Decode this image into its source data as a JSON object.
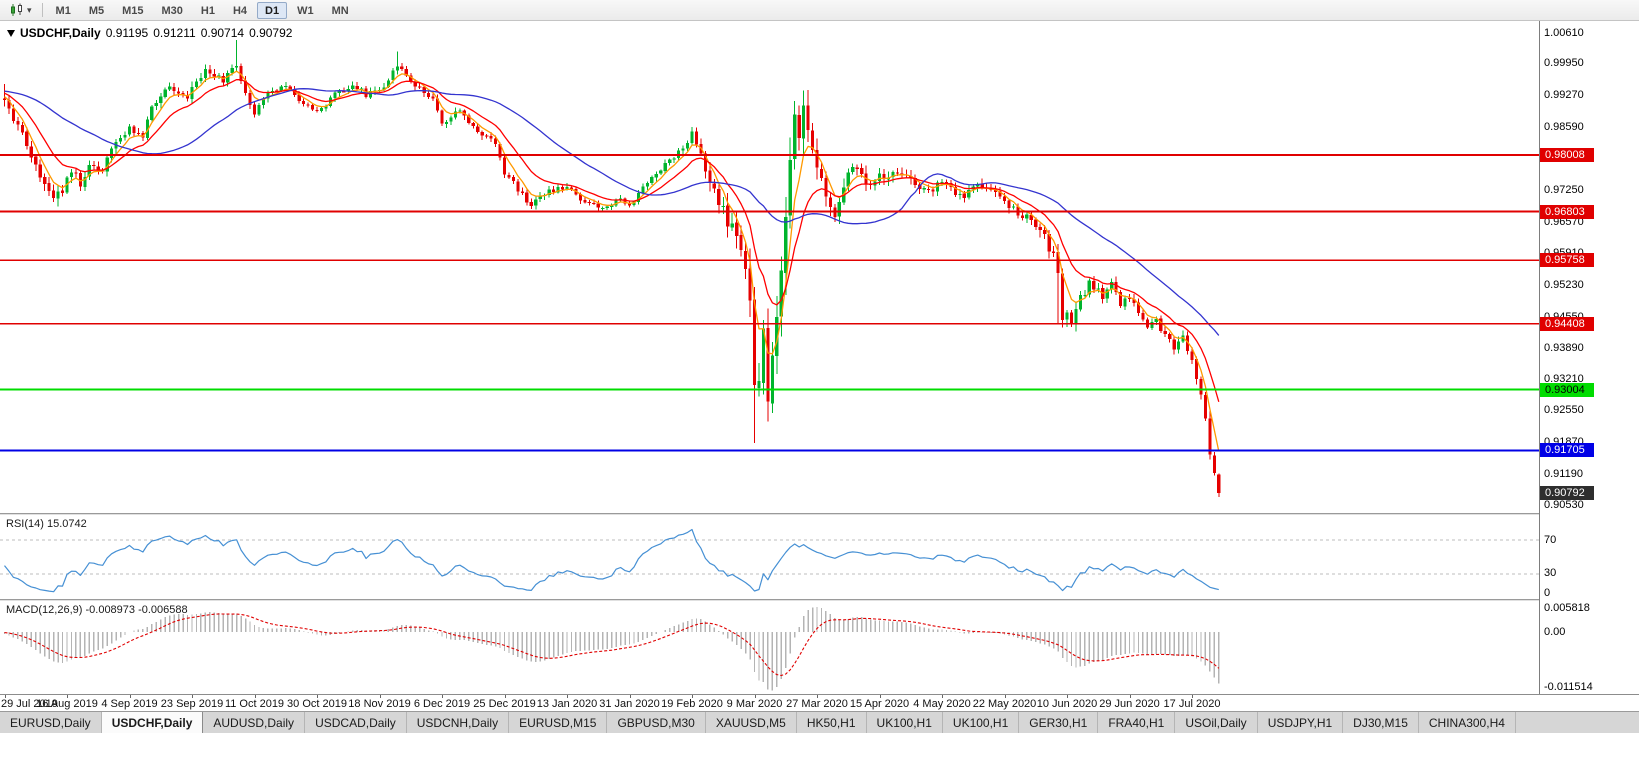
{
  "colors": {
    "bull": "#00b42d",
    "bear": "#e60000",
    "ma_fast": "#ff9900",
    "ma_mid": "#ff0000",
    "ma_slow": "#3434cf",
    "level_red": "#e00000",
    "level_green": "#00dc00",
    "level_blue": "#0000e6",
    "current_tag": "#2e2e2e",
    "rsi_line": "#4690d4",
    "rsi_level": "#bdbdbd",
    "macd_hist": "#b4b4b4",
    "macd_signal": "#e00000"
  },
  "toolbar": {
    "timeframes": [
      "M1",
      "M5",
      "M15",
      "M30",
      "H1",
      "H4",
      "D1",
      "W1",
      "MN"
    ],
    "selected": "D1",
    "chart_type_icon": "candlestick-chart-icon"
  },
  "main_chart": {
    "symbol_label": "USDCHF,Daily",
    "open": "0.91195",
    "high": "0.91211",
    "low": "0.90714",
    "close": "0.90792",
    "price_axis": {
      "scale_top": 1.0061,
      "scale_bottom": 0.9053,
      "labels": [
        "1.00610",
        "0.99950",
        "0.99270",
        "0.98590",
        "0.97910",
        "0.97250",
        "0.96570",
        "0.95910",
        "0.95230",
        "0.94550",
        "0.93890",
        "0.93210",
        "0.92550",
        "0.91870",
        "0.91190",
        "0.90530"
      ]
    },
    "level_lines": [
      {
        "price": 0.98008,
        "label": "0.98008",
        "type": "resistance",
        "color_key": "level_red",
        "text_color": "#ffffff"
      },
      {
        "price": 0.96803,
        "label": "0.96803",
        "type": "resistance",
        "color_key": "level_red",
        "text_color": "#ffffff"
      },
      {
        "price": 0.95758,
        "label": "0.95758",
        "type": "resistance",
        "color_key": "level_red",
        "text_color": "#ffffff"
      },
      {
        "price": 0.94408,
        "label": "0.94408",
        "type": "resistance",
        "color_key": "level_red",
        "text_color": "#ffffff"
      },
      {
        "price": 0.93004,
        "label": "0.93004",
        "type": "support",
        "color_key": "level_green",
        "text_color": "#000000"
      },
      {
        "price": 0.91705,
        "label": "0.91705",
        "type": "support",
        "color_key": "level_blue",
        "text_color": "#ffffff"
      }
    ],
    "current_price": {
      "price": 0.90792,
      "label": "0.90792",
      "text_color": "#ffffff"
    }
  },
  "rsi_panel": {
    "title": "RSI(14)",
    "value": "15.0742",
    "levels": [
      70,
      30
    ],
    "axis_labels": [
      {
        "value": 70,
        "label": "70"
      },
      {
        "value": 30,
        "label": "30"
      },
      {
        "value": 0,
        "label": "0"
      }
    ]
  },
  "macd_panel": {
    "title": "MACD(12,26,9)",
    "values": "-0.008973 -0.006588",
    "scale_top": 0.005818,
    "scale_bottom": -0.011514,
    "axis_labels": [
      {
        "value": 0.005818,
        "label": "0.005818"
      },
      {
        "value": 0,
        "label": "0.00"
      },
      {
        "value": -0.011514,
        "label": "-0.011514"
      }
    ]
  },
  "date_axis": {
    "labels": [
      "29 Jul 2019",
      "16 Aug 2019",
      "4 Sep 2019",
      "23 Sep 2019",
      "11 Oct 2019",
      "30 Oct 2019",
      "18 Nov 2019",
      "6 Dec 2019",
      "25 Dec 2019",
      "13 Jan 2020",
      "31 Jan 2020",
      "19 Feb 2020",
      "9 Mar 2020",
      "27 Mar 2020",
      "15 Apr 2020",
      "4 May 2020",
      "22 May 2020",
      "10 Jun 2020",
      "29 Jun 2020",
      "17 Jul 2020"
    ]
  },
  "tabs": {
    "items": [
      "EURUSD,Daily",
      "USDCHF,Daily",
      "AUDUSD,Daily",
      "USDCAD,Daily",
      "USDCNH,Daily",
      "EURUSD,M15",
      "GBPUSD,M30",
      "XAUUSD,M5",
      "HK50,H1",
      "UK100,H1",
      "UK100,H1",
      "GER30,H1",
      "FRA40,H1",
      "USOil,Daily",
      "USDJPY,H1",
      "DJ30,M15",
      "CHINA300,H4"
    ],
    "active_index": 1
  },
  "chart_data": {
    "type": "candlestick",
    "symbol": "USDCHF",
    "timeframe": "Daily",
    "candle_count": 273,
    "price_range": [
      0.9053,
      1.0061
    ],
    "last_candle": {
      "open": 0.91195,
      "high": 0.91211,
      "low": 0.90714,
      "close": 0.90792
    },
    "close_keypoints": [
      [
        0,
        0.992
      ],
      [
        3,
        0.9862
      ],
      [
        6,
        0.98
      ],
      [
        9,
        0.9742
      ],
      [
        11,
        0.97
      ],
      [
        13,
        0.9728
      ],
      [
        15,
        0.9772
      ],
      [
        17,
        0.9741
      ],
      [
        19,
        0.978
      ],
      [
        22,
        0.9762
      ],
      [
        24,
        0.9818
      ],
      [
        28,
        0.9858
      ],
      [
        31,
        0.984
      ],
      [
        33,
        0.9898
      ],
      [
        37,
        0.9948
      ],
      [
        41,
        0.9928
      ],
      [
        45,
        0.9985
      ],
      [
        49,
        0.9958
      ],
      [
        52,
        0.9998
      ],
      [
        54,
        0.993
      ],
      [
        56,
        0.9882
      ],
      [
        58,
        0.992
      ],
      [
        62,
        0.9952
      ],
      [
        66,
        0.9918
      ],
      [
        70,
        0.989
      ],
      [
        74,
        0.993
      ],
      [
        78,
        0.9952
      ],
      [
        81,
        0.993
      ],
      [
        84,
        0.9938
      ],
      [
        88,
        0.9988
      ],
      [
        92,
        0.995
      ],
      [
        96,
        0.9918
      ],
      [
        98,
        0.9872
      ],
      [
        102,
        0.9892
      ],
      [
        106,
        0.985
      ],
      [
        110,
        0.9828
      ],
      [
        112,
        0.9762
      ],
      [
        116,
        0.9718
      ],
      [
        118,
        0.9692
      ],
      [
        122,
        0.9722
      ],
      [
        126,
        0.9736
      ],
      [
        130,
        0.97
      ],
      [
        134,
        0.9682
      ],
      [
        138,
        0.9712
      ],
      [
        140,
        0.9692
      ],
      [
        144,
        0.9742
      ],
      [
        148,
        0.9782
      ],
      [
        152,
        0.9818
      ],
      [
        154,
        0.9846
      ],
      [
        156,
        0.98
      ],
      [
        158,
        0.9742
      ],
      [
        160,
        0.9702
      ],
      [
        162,
        0.9662
      ],
      [
        164,
        0.9622
      ],
      [
        166,
        0.956
      ],
      [
        167,
        0.948
      ],
      [
        168,
        0.9285
      ],
      [
        169,
        0.9352
      ],
      [
        170,
        0.942
      ],
      [
        171,
        0.931
      ],
      [
        172,
        0.9392
      ],
      [
        173,
        0.9482
      ],
      [
        174,
        0.9562
      ],
      [
        175,
        0.9682
      ],
      [
        176,
        0.9802
      ],
      [
        177,
        0.9896
      ],
      [
        178,
        0.9858
      ],
      [
        179,
        0.9915
      ],
      [
        180,
        0.984
      ],
      [
        182,
        0.9772
      ],
      [
        184,
        0.9702
      ],
      [
        186,
        0.9662
      ],
      [
        188,
        0.9722
      ],
      [
        190,
        0.9778
      ],
      [
        194,
        0.9742
      ],
      [
        196,
        0.9752
      ],
      [
        200,
        0.9772
      ],
      [
        204,
        0.9732
      ],
      [
        208,
        0.9722
      ],
      [
        210,
        0.9748
      ],
      [
        214,
        0.9712
      ],
      [
        218,
        0.9732
      ],
      [
        222,
        0.9722
      ],
      [
        224,
        0.97
      ],
      [
        228,
        0.9672
      ],
      [
        232,
        0.9652
      ],
      [
        234,
        0.9602
      ],
      [
        236,
        0.9562
      ],
      [
        237,
        0.9462
      ],
      [
        239,
        0.9442
      ],
      [
        241,
        0.9492
      ],
      [
        243,
        0.9532
      ],
      [
        246,
        0.9502
      ],
      [
        248,
        0.9532
      ],
      [
        250,
        0.9482
      ],
      [
        252,
        0.9496
      ],
      [
        254,
        0.9462
      ],
      [
        256,
        0.9432
      ],
      [
        258,
        0.9452
      ],
      [
        260,
        0.9412
      ],
      [
        262,
        0.9392
      ],
      [
        264,
        0.9408
      ],
      [
        266,
        0.9372
      ],
      [
        267,
        0.933
      ],
      [
        268,
        0.929
      ],
      [
        269,
        0.9232
      ],
      [
        270,
        0.917
      ],
      [
        271,
        0.9122
      ],
      [
        272,
        0.90792
      ]
    ],
    "volatility_keypoints": [
      [
        0,
        0.0022
      ],
      [
        12,
        0.0026
      ],
      [
        20,
        0.0018
      ],
      [
        40,
        0.0018
      ],
      [
        60,
        0.0015
      ],
      [
        80,
        0.0014
      ],
      [
        100,
        0.0015
      ],
      [
        120,
        0.0014
      ],
      [
        140,
        0.0013
      ],
      [
        152,
        0.0016
      ],
      [
        158,
        0.003
      ],
      [
        164,
        0.0045
      ],
      [
        167,
        0.007
      ],
      [
        168,
        0.009
      ],
      [
        172,
        0.008
      ],
      [
        176,
        0.0075
      ],
      [
        180,
        0.0055
      ],
      [
        184,
        0.004
      ],
      [
        190,
        0.003
      ],
      [
        200,
        0.0022
      ],
      [
        214,
        0.0018
      ],
      [
        228,
        0.0018
      ],
      [
        236,
        0.0034
      ],
      [
        243,
        0.0022
      ],
      [
        252,
        0.0018
      ],
      [
        260,
        0.0016
      ],
      [
        266,
        0.002
      ],
      [
        268,
        0.003
      ],
      [
        271,
        0.0026
      ],
      [
        272,
        0.002
      ]
    ],
    "forced_extremes": [
      [
        0,
        "h",
        0.9952
      ],
      [
        52,
        "h",
        1.0046
      ],
      [
        88,
        "h",
        1.0022
      ],
      [
        168,
        "l",
        0.9186
      ],
      [
        171,
        "l",
        0.9232
      ],
      [
        179,
        "h",
        0.9938
      ],
      [
        236,
        "l",
        0.944
      ]
    ],
    "indicators": {
      "rsi": {
        "period": 14,
        "last": 15.0742
      },
      "macd": {
        "fast": 12,
        "slow": 26,
        "signal": 9,
        "last_macd": -0.008973,
        "last_signal": -0.006588
      },
      "moving_averages": [
        {
          "period": 5,
          "method": "ema",
          "color_key": "ma_fast"
        },
        {
          "period": 13,
          "method": "ema",
          "color_key": "ma_mid"
        },
        {
          "period": 34,
          "method": "sma",
          "color_key": "ma_slow"
        }
      ]
    }
  }
}
